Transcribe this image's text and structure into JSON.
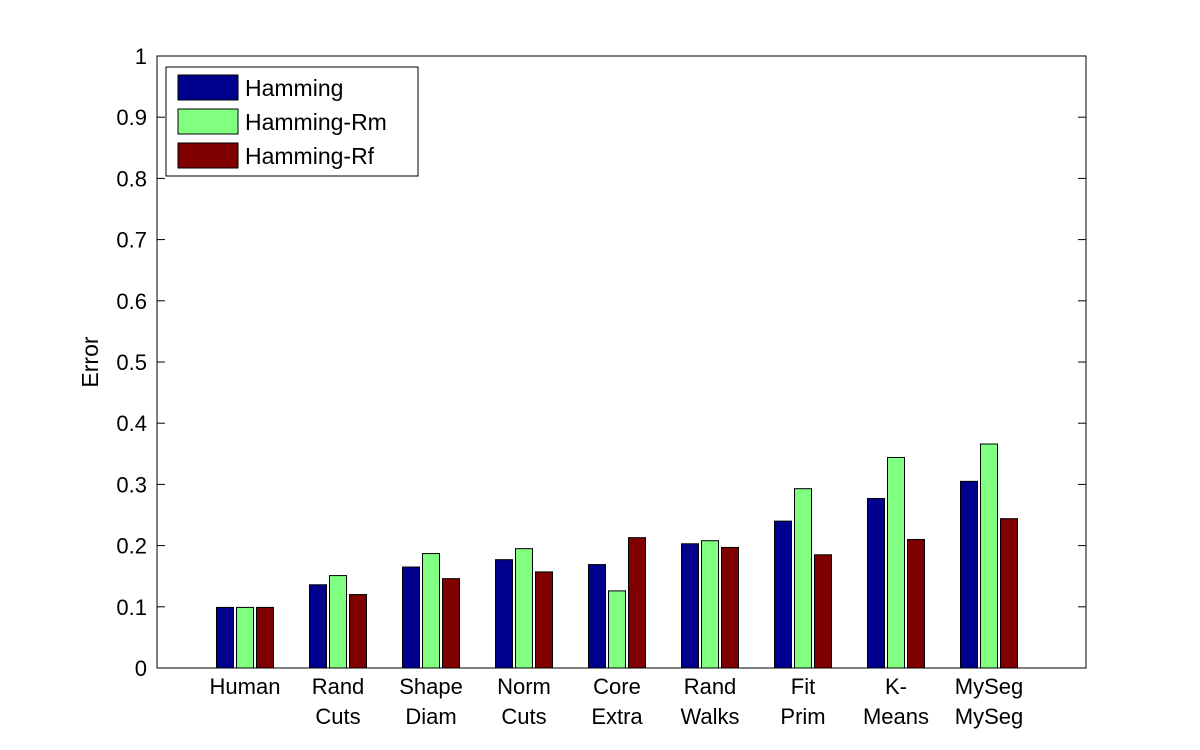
{
  "chart_data": {
    "type": "bar",
    "ylabel": "Error",
    "xlabel": "",
    "title": "",
    "ylim": [
      0,
      1
    ],
    "yticks": [
      "0",
      "0.1",
      "0.2",
      "0.3",
      "0.4",
      "0.5",
      "0.6",
      "0.7",
      "0.8",
      "0.9",
      "1"
    ],
    "categories": [
      [
        "Human"
      ],
      [
        "Rand",
        "Cuts"
      ],
      [
        "Shape",
        "Diam"
      ],
      [
        "Norm",
        "Cuts"
      ],
      [
        "Core",
        "Extra"
      ],
      [
        "Rand",
        "Walks"
      ],
      [
        "Fit",
        "Prim"
      ],
      [
        "K-",
        "Means"
      ],
      [
        "MySeg",
        "MySeg"
      ]
    ],
    "series": [
      {
        "name": "Hamming",
        "color": "#00008f",
        "values": [
          0.099,
          0.136,
          0.165,
          0.177,
          0.169,
          0.203,
          0.24,
          0.277,
          0.305
        ]
      },
      {
        "name": "Hamming-Rm",
        "color": "#80ff80",
        "values": [
          0.099,
          0.151,
          0.187,
          0.195,
          0.126,
          0.208,
          0.293,
          0.344,
          0.366
        ]
      },
      {
        "name": "Hamming-Rf",
        "color": "#800000",
        "values": [
          0.099,
          0.12,
          0.146,
          0.157,
          0.213,
          0.197,
          0.185,
          0.21,
          0.244
        ]
      }
    ],
    "legend_position": "top-left",
    "grid": false
  }
}
